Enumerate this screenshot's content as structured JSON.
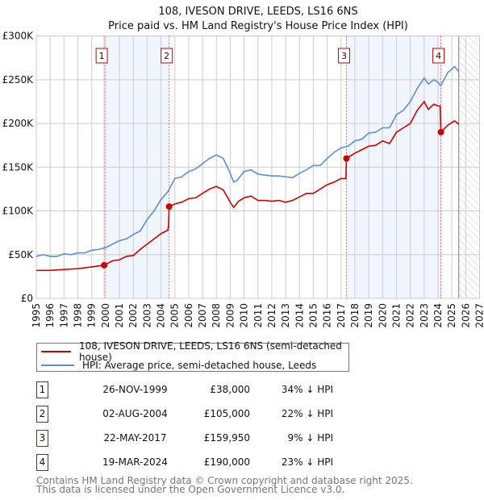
{
  "chart_data": {
    "type": "line",
    "title": "108, IVESON DRIVE, LEEDS, LS16 6NS",
    "subtitle": "Price paid vs. HM Land Registry's House Price Index (HPI)",
    "xlim": [
      1995,
      2027
    ],
    "ylim": [
      0,
      300000
    ],
    "grid": true,
    "y_ticks": [
      {
        "v": 0,
        "label": "£0"
      },
      {
        "v": 50000,
        "label": "£50K"
      },
      {
        "v": 100000,
        "label": "£100K"
      },
      {
        "v": 150000,
        "label": "£150K"
      },
      {
        "v": 200000,
        "label": "£200K"
      },
      {
        "v": 250000,
        "label": "£250K"
      },
      {
        "v": 300000,
        "label": "£300K"
      }
    ],
    "x_ticks": [
      "1995",
      "1996",
      "1997",
      "1998",
      "1999",
      "2000",
      "2001",
      "2002",
      "2003",
      "2004",
      "2005",
      "2006",
      "2007",
      "2008",
      "2009",
      "2010",
      "2011",
      "2012",
      "2013",
      "2014",
      "2015",
      "2016",
      "2017",
      "2018",
      "2019",
      "2020",
      "2021",
      "2022",
      "2023",
      "2024",
      "2025",
      "2026",
      "2027"
    ],
    "shaded_ranges": [
      [
        1999.9,
        2004.59
      ],
      [
        2017.39,
        2024.21
      ]
    ],
    "forecast_from": 2025.5,
    "series": [
      {
        "name": "108, IVESON DRIVE, LEEDS, LS16 6NS (semi-detached house)",
        "color": "#cc0000",
        "x": [
          1995,
          1996,
          1997,
          1998,
          1999,
          1999.9,
          2000.5,
          2001,
          2001.5,
          2002,
          2002.5,
          2003,
          2003.5,
          2004,
          2004.5,
          2004.55,
          2004.59,
          2005,
          2005.5,
          2006,
          2006.5,
          2007,
          2007.5,
          2008,
          2008.5,
          2009,
          2009.25,
          2009.6,
          2010,
          2010.5,
          2011,
          2011.5,
          2012,
          2012.5,
          2013,
          2013.5,
          2014,
          2014.5,
          2015,
          2015.5,
          2016,
          2016.5,
          2017,
          2017.35,
          2017.39,
          2018,
          2018.5,
          2019,
          2019.5,
          2020,
          2020.5,
          2021,
          2021.5,
          2022,
          2022.5,
          2023,
          2023.3,
          2023.7,
          2024,
          2024.15,
          2024.21,
          2024.7,
          2025.2,
          2025.5
        ],
        "y": [
          32000,
          32000,
          33000,
          34000,
          36000,
          38000,
          43000,
          44000,
          48000,
          49000,
          56000,
          62000,
          68000,
          74000,
          78000,
          84000,
          105000,
          108000,
          110000,
          114000,
          115000,
          120000,
          125000,
          128000,
          124000,
          110000,
          104000,
          111000,
          115000,
          117000,
          112000,
          112000,
          111000,
          112000,
          110000,
          112000,
          116000,
          120000,
          120000,
          125000,
          130000,
          133000,
          137000,
          137000,
          159950,
          166000,
          170000,
          174000,
          175000,
          180000,
          177000,
          190000,
          195000,
          200000,
          215000,
          225000,
          216000,
          222000,
          220000,
          220000,
          190000,
          198000,
          203000,
          199000
        ]
      },
      {
        "name": "HPI: Average price, semi-detached house, Leeds",
        "color": "#5b8fd0",
        "x": [
          1995,
          1995.5,
          1996,
          1996.5,
          1997,
          1997.5,
          1998,
          1998.5,
          1999,
          1999.5,
          2000,
          2000.5,
          2001,
          2001.5,
          2002,
          2002.5,
          2003,
          2003.5,
          2004,
          2004.5,
          2005,
          2005.5,
          2006,
          2006.5,
          2007,
          2007.5,
          2008,
          2008.5,
          2009,
          2009.25,
          2009.5,
          2010,
          2010.5,
          2011,
          2011.5,
          2012,
          2012.5,
          2013,
          2013.5,
          2014,
          2014.5,
          2015,
          2015.5,
          2016,
          2016.5,
          2017,
          2017.5,
          2018,
          2018.5,
          2019,
          2019.5,
          2020,
          2020.5,
          2021,
          2021.5,
          2022,
          2022.5,
          2023,
          2023.3,
          2023.7,
          2024,
          2024.2,
          2024.7,
          2025.2,
          2025.5
        ],
        "y": [
          48000,
          50000,
          48000,
          48000,
          51000,
          50000,
          52000,
          52000,
          55000,
          56000,
          58000,
          62000,
          66000,
          68000,
          73000,
          77000,
          90000,
          100000,
          113000,
          122000,
          137000,
          139000,
          145000,
          148000,
          154000,
          160000,
          164000,
          160000,
          143000,
          133000,
          135000,
          145000,
          147000,
          142000,
          141000,
          140000,
          140000,
          139000,
          138000,
          143000,
          147000,
          152000,
          152000,
          160000,
          167000,
          172000,
          174000,
          180000,
          182000,
          189000,
          190000,
          195000,
          195000,
          210000,
          215000,
          225000,
          240000,
          252000,
          245000,
          250000,
          247000,
          243000,
          258000,
          265000,
          259000
        ]
      }
    ],
    "transactions": [
      {
        "label": "1",
        "x": 1999.9,
        "price": 38000,
        "date": "26-NOV-1999",
        "price_text": "£38,000",
        "hpi_text": "34% ↓ HPI"
      },
      {
        "label": "2",
        "x": 2004.59,
        "price": 105000,
        "date": "02-AUG-2004",
        "price_text": "£105,000",
        "hpi_text": "22% ↓ HPI"
      },
      {
        "label": "3",
        "x": 2017.39,
        "price": 159950,
        "date": "22-MAY-2017",
        "price_text": "£159,950",
        "hpi_text": "9% ↓ HPI"
      },
      {
        "label": "4",
        "x": 2024.21,
        "price": 190000,
        "date": "19-MAR-2024",
        "price_text": "£190,000",
        "hpi_text": "23% ↓ HPI"
      }
    ]
  },
  "legend": {
    "property": "108, IVESON DRIVE, LEEDS, LS16 6NS (semi-detached house)",
    "hpi": "HPI: Average price, semi-detached house, Leeds"
  },
  "footer": {
    "line1": "Contains HM Land Registry data © Crown copyright and database right 2025.",
    "line2": "This data is licensed under the Open Government Licence v3.0."
  }
}
